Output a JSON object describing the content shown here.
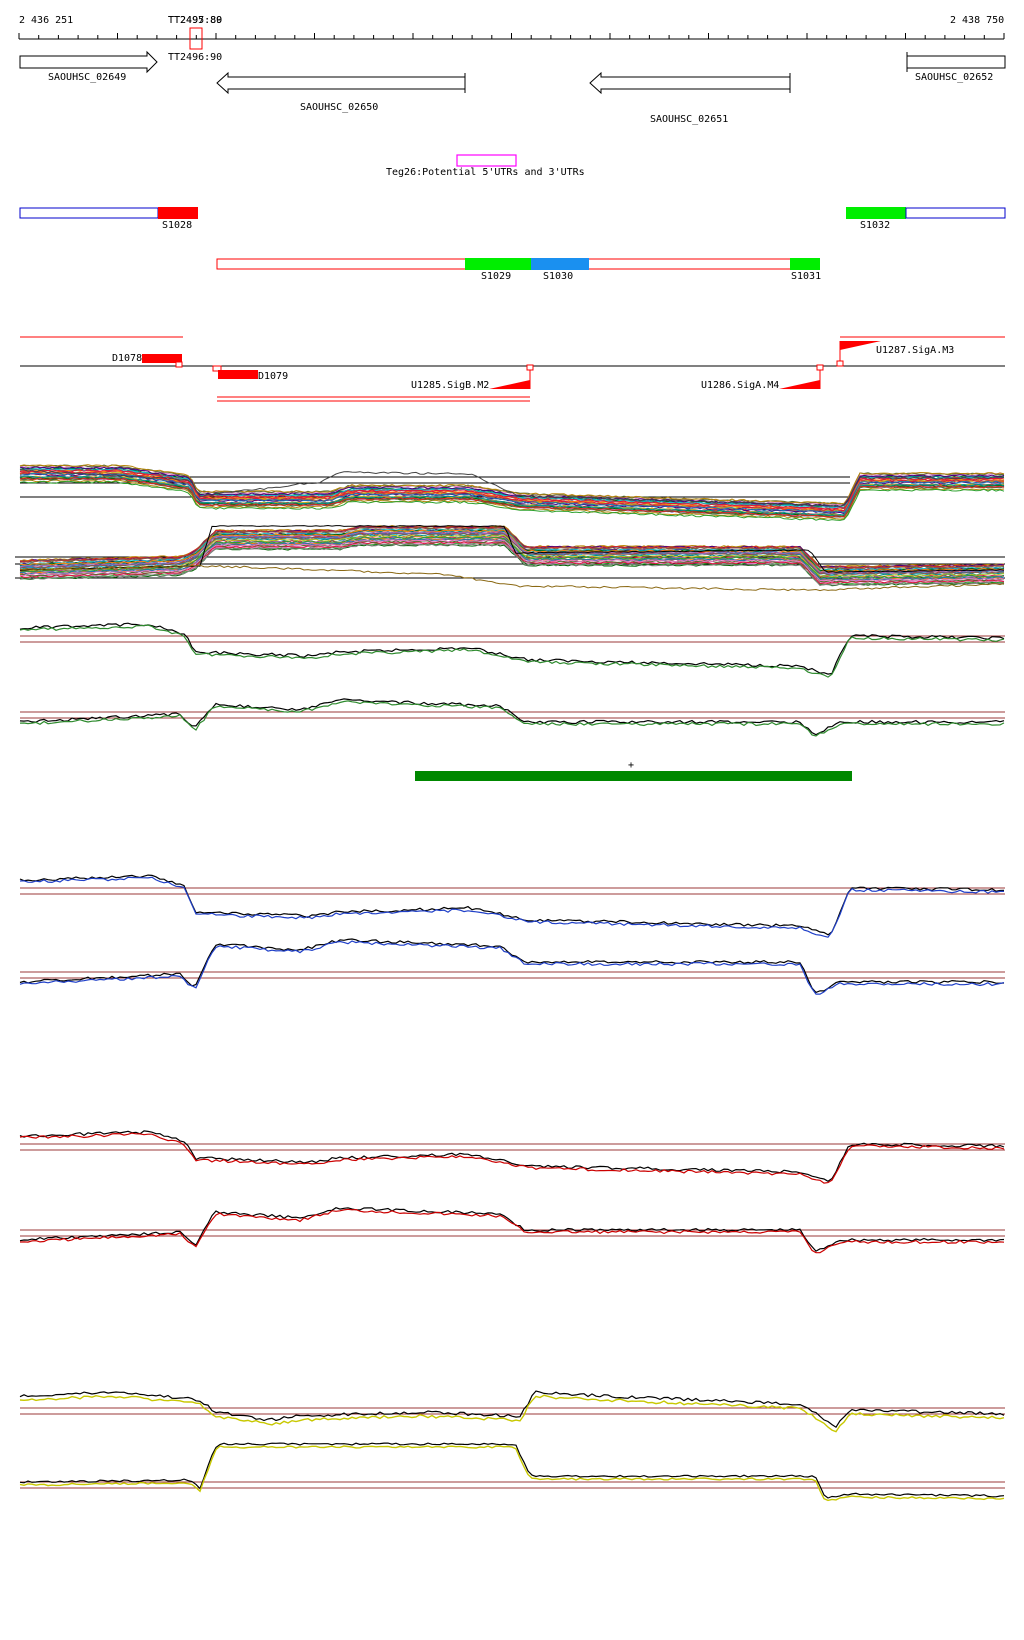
{
  "ruler": {
    "start_label": "2 436 251",
    "end_label": "2 438 750",
    "marker_labels": [
      "TT2495:80",
      "TT2497:89"
    ],
    "marker_below": "TT2496:90"
  },
  "genes": [
    {
      "id": "SAOUHSC_02649",
      "strand": "+"
    },
    {
      "id": "SAOUHSC_02650",
      "strand": "-"
    },
    {
      "id": "SAOUHSC_02651",
      "strand": "-"
    },
    {
      "id": "SAOUHSC_02652",
      "strand": "-"
    }
  ],
  "utr_label": "Teg26:Potential 5'UTRs and 3'UTRs",
  "segments": [
    "S1028",
    "S1032",
    "S1029",
    "S1030",
    "S1031"
  ],
  "tss_labels": [
    "D1078",
    "D1079",
    "U1285.SigB.M2",
    "U1286.SigA.M4",
    "U1287.SigA.M3"
  ],
  "plus_marker": "+",
  "colors": {
    "gene_outline": "#000000",
    "utr": "#ff00ff",
    "segment_blue_outline": "#0000cc",
    "segment_red": "#ff0000",
    "segment_green": "#00ee00",
    "segment_cyan": "#1a90f0",
    "green_bar": "#008800",
    "blue_track": "#1f3fc8",
    "red_track": "#cc0000",
    "yellow_track": "#c8c800",
    "baseline": "#9b3a3a"
  }
}
